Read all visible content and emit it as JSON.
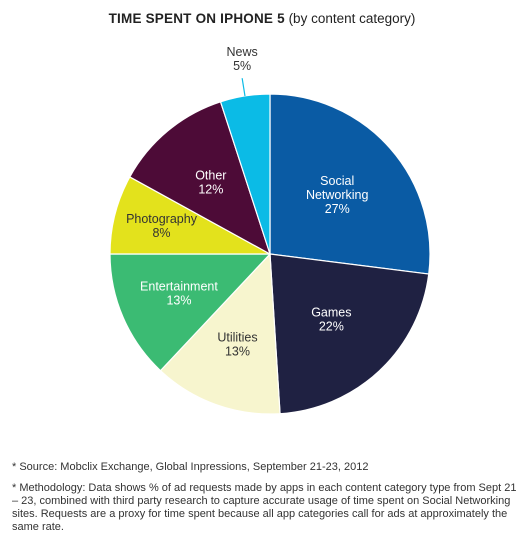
{
  "chart_data": {
    "type": "pie",
    "title": "TIME SPENT ON IPHONE 5",
    "subtitle": "(by content category)",
    "slices": [
      {
        "label": "Social Networking",
        "display_label": [
          "Social",
          "Networking"
        ],
        "value": 27,
        "value_label": "27%",
        "color": "#0a5ba4",
        "text_color": "#ffffff"
      },
      {
        "label": "Games",
        "display_label": [
          "Games"
        ],
        "value": 22,
        "value_label": "22%",
        "color": "#1f2142",
        "text_color": "#ffffff"
      },
      {
        "label": "Utilities",
        "display_label": [
          "Utilities"
        ],
        "value": 13,
        "value_label": "13%",
        "color": "#f7f5ce",
        "text_color": "#333333"
      },
      {
        "label": "Entertainment",
        "display_label": [
          "Entertainment"
        ],
        "value": 13,
        "value_label": "13%",
        "color": "#3bbb73",
        "text_color": "#ffffff"
      },
      {
        "label": "Photography",
        "display_label": [
          "Photography"
        ],
        "value": 8,
        "value_label": "8%",
        "color": "#e3e21c",
        "text_color": "#333333"
      },
      {
        "label": "Other",
        "display_label": [
          "Other"
        ],
        "value": 12,
        "value_label": "12%",
        "color": "#4d0b37",
        "text_color": "#ffffff"
      },
      {
        "label": "News",
        "display_label": [
          "News"
        ],
        "value": 5,
        "value_label": "5%",
        "color": "#0bbbe6",
        "text_color": "#333333"
      }
    ]
  },
  "footnotes": {
    "source": "* Source: Mobclix Exchange, Global Inpressions, September 21-23, 2012",
    "methodology": "* Methodology: Data shows % of ad requests made by apps in each content category type from Sept 21 – 23, combined with third party research to capture accurate usage of time spent on Social Networking sites. Requests are a proxy for time spent because all app categories call for ads at approximately the same rate."
  }
}
